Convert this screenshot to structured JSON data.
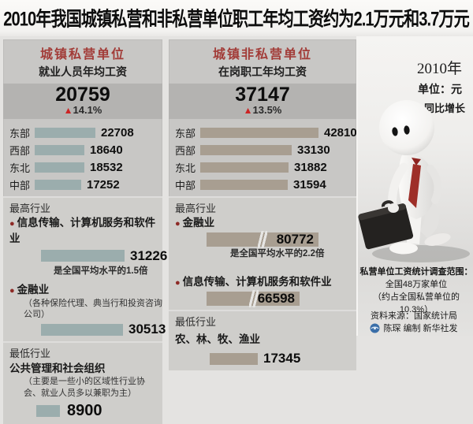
{
  "title": "2010年我国城镇私营和非私营单位职工年均工资约为2.1万元和3.7万元",
  "meta": {
    "year": "2010年",
    "unit_label": "单位：元",
    "legend_triangle": "▲",
    "legend_label": "同比增长"
  },
  "footer": {
    "survey_scope_title": "私营单位工资统计调查范围：",
    "survey_scope_line1": "全国48万家单位",
    "survey_scope_line2": "（约占全国私营单位的10.3%）",
    "source": "资料来源：国家统计局",
    "credit": "陈琛 编制 新华社发"
  },
  "colors": {
    "accent_red": "#a23c38",
    "triangle_red": "#cc2424",
    "private_bar": "#9badad",
    "non_private_bar": "#a89e91"
  },
  "chart_data": [
    {
      "type": "bar",
      "panel": "urban_private_units",
      "title": "城镇私营单位",
      "subtitle": "就业人员年均工资",
      "average": "20759",
      "growth": "14.1%",
      "bar_color": "#9badad",
      "unit": "元",
      "categories": [
        "东部",
        "西部",
        "东北",
        "中部"
      ],
      "values": [
        22708,
        18640,
        18532,
        17252
      ],
      "highest_label": "最高行业",
      "lowest_label": "最低行业",
      "highest": [
        {
          "name": "信息传输、计算机服务和软件业",
          "value": 31226,
          "note": "是全国平均水平的1.5倍"
        },
        {
          "name": "金融业",
          "paren": "（各种保险代理、典当行和投资咨询公司）",
          "value": 30513
        }
      ],
      "lowest": {
        "name": "公共管理和社会组织",
        "paren": "（主要是一些小的区域性行业协会、就业人员多以兼职为主）",
        "value": 8900
      }
    },
    {
      "type": "bar",
      "panel": "urban_non_private_units",
      "title": "城镇非私营单位",
      "subtitle": "在岗职工年均工资",
      "average": "37147",
      "growth": "13.5%",
      "bar_color": "#a89e91",
      "unit": "元",
      "categories": [
        "东部",
        "西部",
        "东北",
        "中部"
      ],
      "values": [
        42810,
        33130,
        31882,
        31594
      ],
      "highest_label": "最高行业",
      "lowest_label": "最低行业",
      "highest": [
        {
          "name": "金融业",
          "value": 80772,
          "note": "是全国平均水平的2.2倍",
          "scale_break": true
        },
        {
          "name": "信息传输、计算机服务和软件业",
          "value": 66598,
          "scale_break": true
        }
      ],
      "lowest": {
        "name": "农、林、牧、渔业",
        "value": 17345
      }
    }
  ]
}
